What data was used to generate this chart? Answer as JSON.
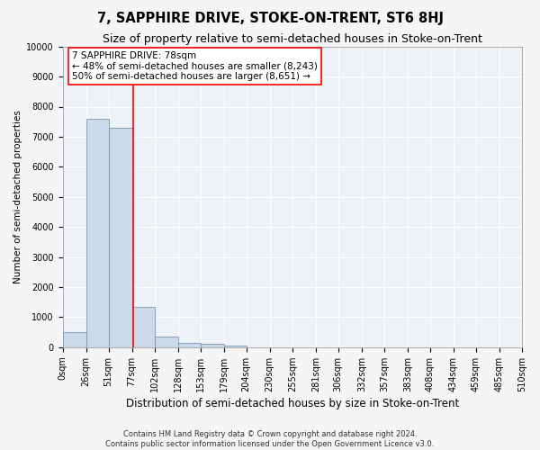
{
  "title": "7, SAPPHIRE DRIVE, STOKE-ON-TRENT, ST6 8HJ",
  "subtitle": "Size of property relative to semi-detached houses in Stoke-on-Trent",
  "xlabel": "Distribution of semi-detached houses by size in Stoke-on-Trent",
  "ylabel": "Number of semi-detached properties",
  "footnote1": "Contains HM Land Registry data © Crown copyright and database right 2024.",
  "footnote2": "Contains public sector information licensed under the Open Government Licence v3.0.",
  "bin_edges": [
    0,
    26,
    51,
    77,
    102,
    128,
    153,
    179,
    204,
    230,
    255,
    281,
    306,
    332,
    357,
    383,
    408,
    434,
    459,
    485,
    510
  ],
  "bar_heights": [
    500,
    7600,
    7300,
    1350,
    350,
    150,
    100,
    60,
    0,
    0,
    0,
    0,
    0,
    0,
    0,
    0,
    0,
    0,
    0,
    0
  ],
  "bar_color": "#ccd9e8",
  "bar_edge_color": "#7799bb",
  "red_line_x": 78,
  "annotation_line1": "7 SAPPHIRE DRIVE: 78sqm",
  "annotation_line2": "← 48% of semi-detached houses are smaller (8,243)",
  "annotation_line3": "50% of semi-detached houses are larger (8,651) →",
  "ylim": [
    0,
    10000
  ],
  "yticks": [
    0,
    1000,
    2000,
    3000,
    4000,
    5000,
    6000,
    7000,
    8000,
    9000,
    10000
  ],
  "bg_color": "#eef2f7",
  "grid_color": "#ffffff",
  "title_fontsize": 10.5,
  "subtitle_fontsize": 9,
  "ylabel_fontsize": 7.5,
  "xlabel_fontsize": 8.5,
  "tick_fontsize": 7,
  "annot_fontsize": 7.5,
  "footnote_fontsize": 6
}
